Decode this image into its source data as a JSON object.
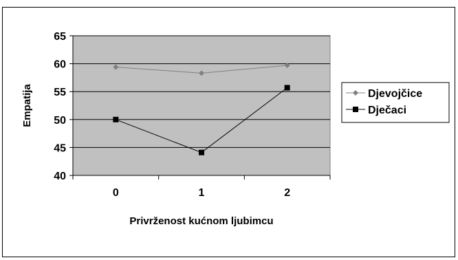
{
  "chart_data": {
    "type": "line",
    "title": "",
    "xlabel": "Privrženost kućnom ljubimcu",
    "ylabel": "Empatija",
    "categories": [
      "0",
      "1",
      "2"
    ],
    "ylim": [
      40,
      65
    ],
    "yticks": [
      "40",
      "45",
      "50",
      "55",
      "60",
      "65"
    ],
    "grid": true,
    "legend_position": "right",
    "plot_background": "#c0c0c0",
    "series": [
      {
        "name": "Djevojčice",
        "values": [
          59.4,
          58.3,
          59.7
        ],
        "color": "#808080",
        "marker": "diamond"
      },
      {
        "name": "Dječaci",
        "values": [
          50.0,
          44.1,
          55.7
        ],
        "color": "#000000",
        "marker": "square"
      }
    ]
  }
}
